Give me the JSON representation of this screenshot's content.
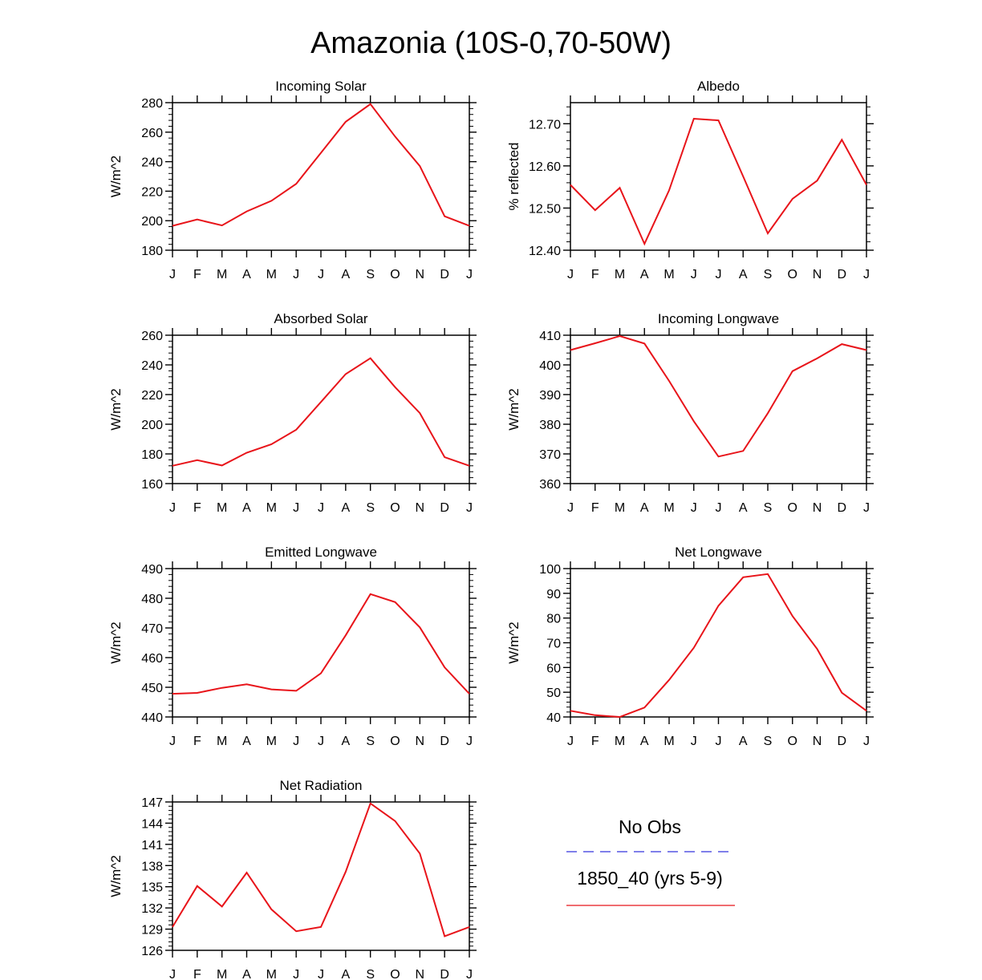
{
  "figure_title": "Amazonia (10S-0,70-50W)",
  "legend": {
    "obs_label": "No Obs",
    "obs_color": "#3333dd",
    "model_label": "1850_40 (yrs 5-9)",
    "model_color": "#e8141a"
  },
  "chart_data": [
    {
      "type": "line",
      "title": "Incoming Solar",
      "ylabel": "W/m^2",
      "xlabel": "",
      "categories": [
        "J",
        "F",
        "M",
        "A",
        "M",
        "J",
        "J",
        "A",
        "S",
        "O",
        "N",
        "D",
        "J"
      ],
      "ylim": [
        180,
        280
      ],
      "yticks": [
        "180",
        "200",
        "220",
        "240",
        "260",
        "280"
      ],
      "series": [
        {
          "name": "1850_40 (yrs 5-9)",
          "values": [
            196.5,
            200.8,
            196.8,
            206.3,
            213.5,
            225.0,
            246.0,
            267.0,
            279.0,
            257.0,
            237.0,
            203.0,
            196.5
          ]
        }
      ]
    },
    {
      "type": "line",
      "title": "Albedo",
      "ylabel": "% reflected",
      "xlabel": "",
      "categories": [
        "J",
        "F",
        "M",
        "A",
        "M",
        "J",
        "J",
        "A",
        "S",
        "O",
        "N",
        "D",
        "J"
      ],
      "ylim": [
        12.4,
        12.75
      ],
      "yticks": [
        "12.40",
        "12.50",
        "12.60",
        "12.70"
      ],
      "series": [
        {
          "name": "1850_40 (yrs 5-9)",
          "values": [
            12.555,
            12.495,
            12.548,
            12.415,
            12.542,
            12.712,
            12.708,
            12.575,
            12.44,
            12.522,
            12.565,
            12.662,
            12.555
          ]
        }
      ]
    },
    {
      "type": "line",
      "title": "Absorbed Solar",
      "ylabel": "W/m^2",
      "xlabel": "",
      "categories": [
        "J",
        "F",
        "M",
        "A",
        "M",
        "J",
        "J",
        "A",
        "S",
        "O",
        "N",
        "D",
        "J"
      ],
      "ylim": [
        160,
        260
      ],
      "yticks": [
        "160",
        "180",
        "200",
        "220",
        "240",
        "260"
      ],
      "series": [
        {
          "name": "1850_40 (yrs 5-9)",
          "values": [
            172.0,
            175.8,
            172.2,
            180.8,
            186.5,
            196.3,
            215.0,
            233.8,
            244.5,
            225.0,
            207.5,
            177.8,
            172.0
          ]
        }
      ]
    },
    {
      "type": "line",
      "title": "Incoming Longwave",
      "ylabel": "W/m^2",
      "xlabel": "",
      "categories": [
        "J",
        "F",
        "M",
        "A",
        "M",
        "J",
        "J",
        "A",
        "S",
        "O",
        "N",
        "D",
        "J"
      ],
      "ylim": [
        360,
        410
      ],
      "yticks": [
        "360",
        "370",
        "380",
        "390",
        "400",
        "410"
      ],
      "series": [
        {
          "name": "1850_40 (yrs 5-9)",
          "values": [
            405.0,
            407.3,
            409.7,
            407.2,
            394.6,
            381.0,
            369.1,
            371.0,
            383.7,
            397.9,
            402.2,
            407.0,
            405.0
          ]
        }
      ]
    },
    {
      "type": "line",
      "title": "Emitted Longwave",
      "ylabel": "W/m^2",
      "xlabel": "",
      "categories": [
        "J",
        "F",
        "M",
        "A",
        "M",
        "J",
        "J",
        "A",
        "S",
        "O",
        "N",
        "D",
        "J"
      ],
      "ylim": [
        440,
        490
      ],
      "yticks": [
        "440",
        "450",
        "460",
        "470",
        "480",
        "490"
      ],
      "series": [
        {
          "name": "1850_40 (yrs 5-9)",
          "values": [
            447.8,
            448.1,
            449.8,
            451.0,
            449.3,
            448.8,
            454.7,
            467.5,
            481.4,
            478.7,
            470.2,
            456.7,
            447.8
          ]
        }
      ]
    },
    {
      "type": "line",
      "title": "Net Longwave",
      "ylabel": "W/m^2",
      "xlabel": "",
      "categories": [
        "J",
        "F",
        "M",
        "A",
        "M",
        "J",
        "J",
        "A",
        "S",
        "O",
        "N",
        "D",
        "J"
      ],
      "ylim": [
        40,
        100
      ],
      "yticks": [
        "40",
        "50",
        "60",
        "70",
        "80",
        "90",
        "100"
      ],
      "series": [
        {
          "name": "1850_40 (yrs 5-9)",
          "values": [
            42.5,
            40.7,
            40.0,
            43.8,
            55.0,
            68.0,
            85.0,
            96.5,
            97.8,
            80.8,
            67.5,
            49.8,
            42.5
          ]
        }
      ]
    },
    {
      "type": "line",
      "title": "Net Radiation",
      "ylabel": "W/m^2",
      "xlabel": "",
      "categories": [
        "J",
        "F",
        "M",
        "A",
        "M",
        "J",
        "J",
        "A",
        "S",
        "O",
        "N",
        "D",
        "J"
      ],
      "ylim": [
        126,
        147
      ],
      "yticks": [
        "126",
        "129",
        "132",
        "135",
        "138",
        "141",
        "144",
        "147"
      ],
      "series": [
        {
          "name": "1850_40 (yrs 5-9)",
          "values": [
            129.3,
            135.1,
            132.2,
            137.0,
            131.8,
            128.7,
            129.3,
            137.1,
            146.8,
            144.3,
            139.7,
            128.0,
            129.3
          ]
        }
      ]
    }
  ]
}
